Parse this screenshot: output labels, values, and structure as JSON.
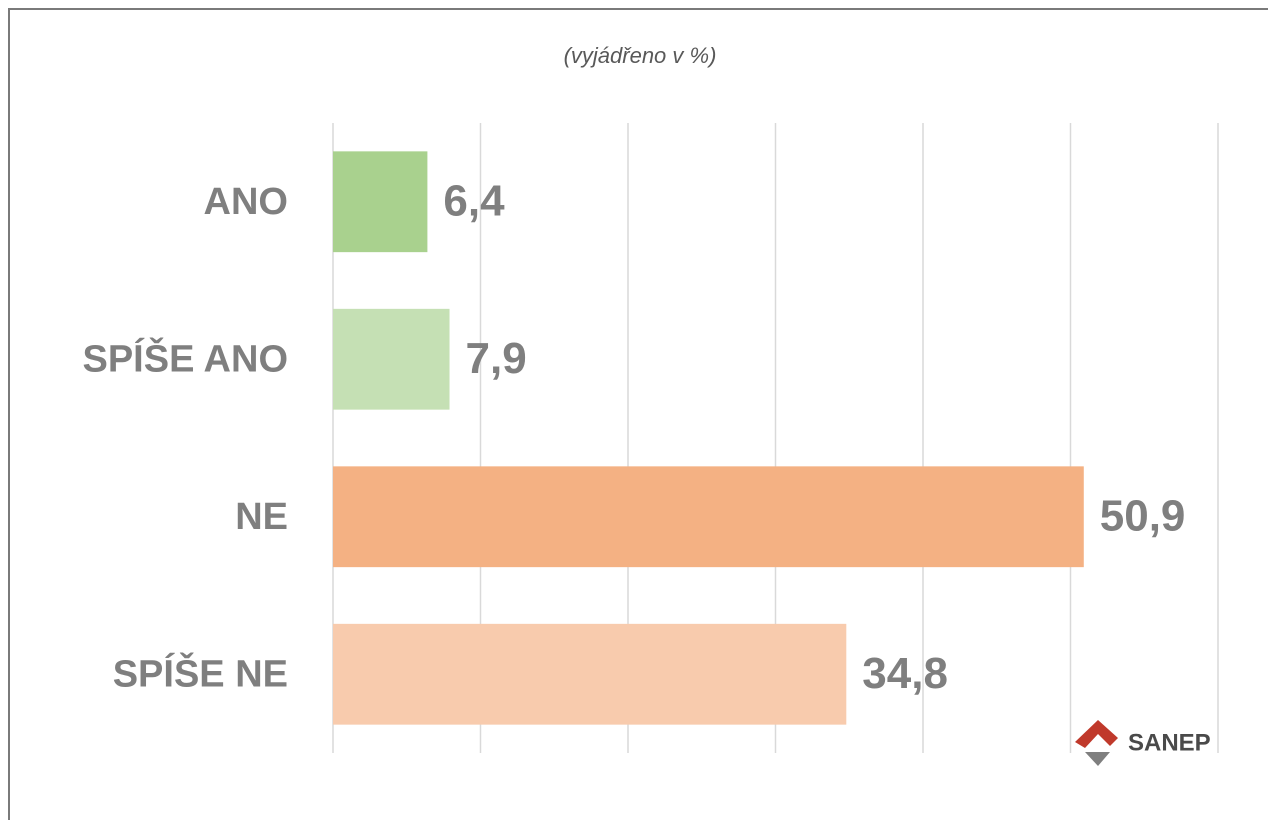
{
  "chart_data": {
    "type": "barh",
    "subtitle": "(vyjádřeno v %)",
    "categories": [
      "ANO",
      "SPÍŠE ANO",
      "NE",
      "SPÍŠE NE"
    ],
    "values": [
      6.4,
      7.9,
      50.9,
      34.8
    ],
    "value_labels": [
      "6,4",
      "7,9",
      "50,9",
      "34,8"
    ],
    "colors": [
      "#a9d18e",
      "#c5e0b4",
      "#f4b183",
      "#f8cbad"
    ],
    "xlim": [
      0,
      60
    ],
    "xticks": [
      0,
      10,
      20,
      30,
      40,
      50,
      60
    ],
    "grid": true,
    "logo": "SANEP"
  }
}
